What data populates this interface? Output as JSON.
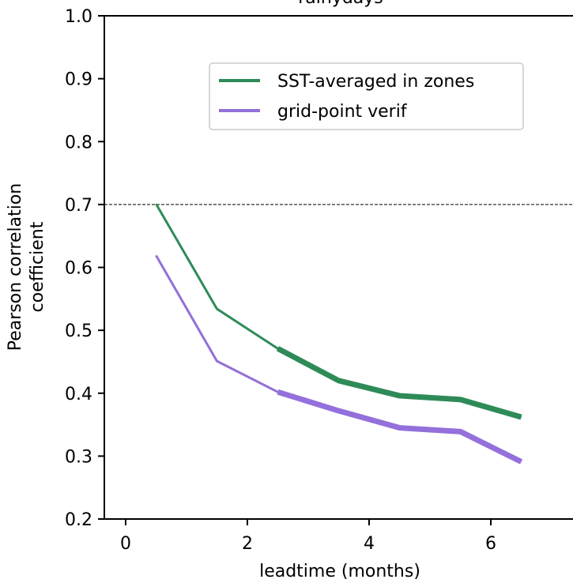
{
  "chart_data": {
    "type": "line",
    "title": "rainydays",
    "xlabel": "leadtime (months)",
    "ylabel_lines": [
      "Pearson correlation",
      "coefficient"
    ],
    "xlim": [
      -0.35,
      7.35
    ],
    "ylim": [
      0.2,
      1.0
    ],
    "xticks": [
      0,
      2,
      4,
      6
    ],
    "xtick_labels": [
      "0",
      "2",
      "4",
      "6"
    ],
    "yticks": [
      0.2,
      0.3,
      0.4,
      0.5,
      0.6,
      0.7,
      0.8,
      0.9,
      1.0
    ],
    "ytick_labels": [
      "0.2",
      "0.3",
      "0.4",
      "0.5",
      "0.6",
      "0.7",
      "0.8",
      "0.9",
      "1.0"
    ],
    "reference_line": {
      "y": 0.7,
      "style": "dashed",
      "color": "#000000"
    },
    "legend_position": "upper-center",
    "series": [
      {
        "name": "SST-averaged in zones",
        "color": "#2e8b57",
        "x": [
          0.5,
          1.5,
          2.5,
          3.5,
          4.5,
          5.5,
          6.5
        ],
        "y": [
          0.701,
          0.534,
          0.471,
          0.42,
          0.396,
          0.39,
          0.362
        ],
        "thick_from_x": 2.5
      },
      {
        "name": "grid-point verif",
        "color": "#9370db",
        "x": [
          0.5,
          1.5,
          2.5,
          3.5,
          4.5,
          5.5,
          6.5
        ],
        "y": [
          0.619,
          0.451,
          0.402,
          0.372,
          0.345,
          0.339,
          0.291
        ],
        "thick_from_x": 2.5
      }
    ]
  }
}
